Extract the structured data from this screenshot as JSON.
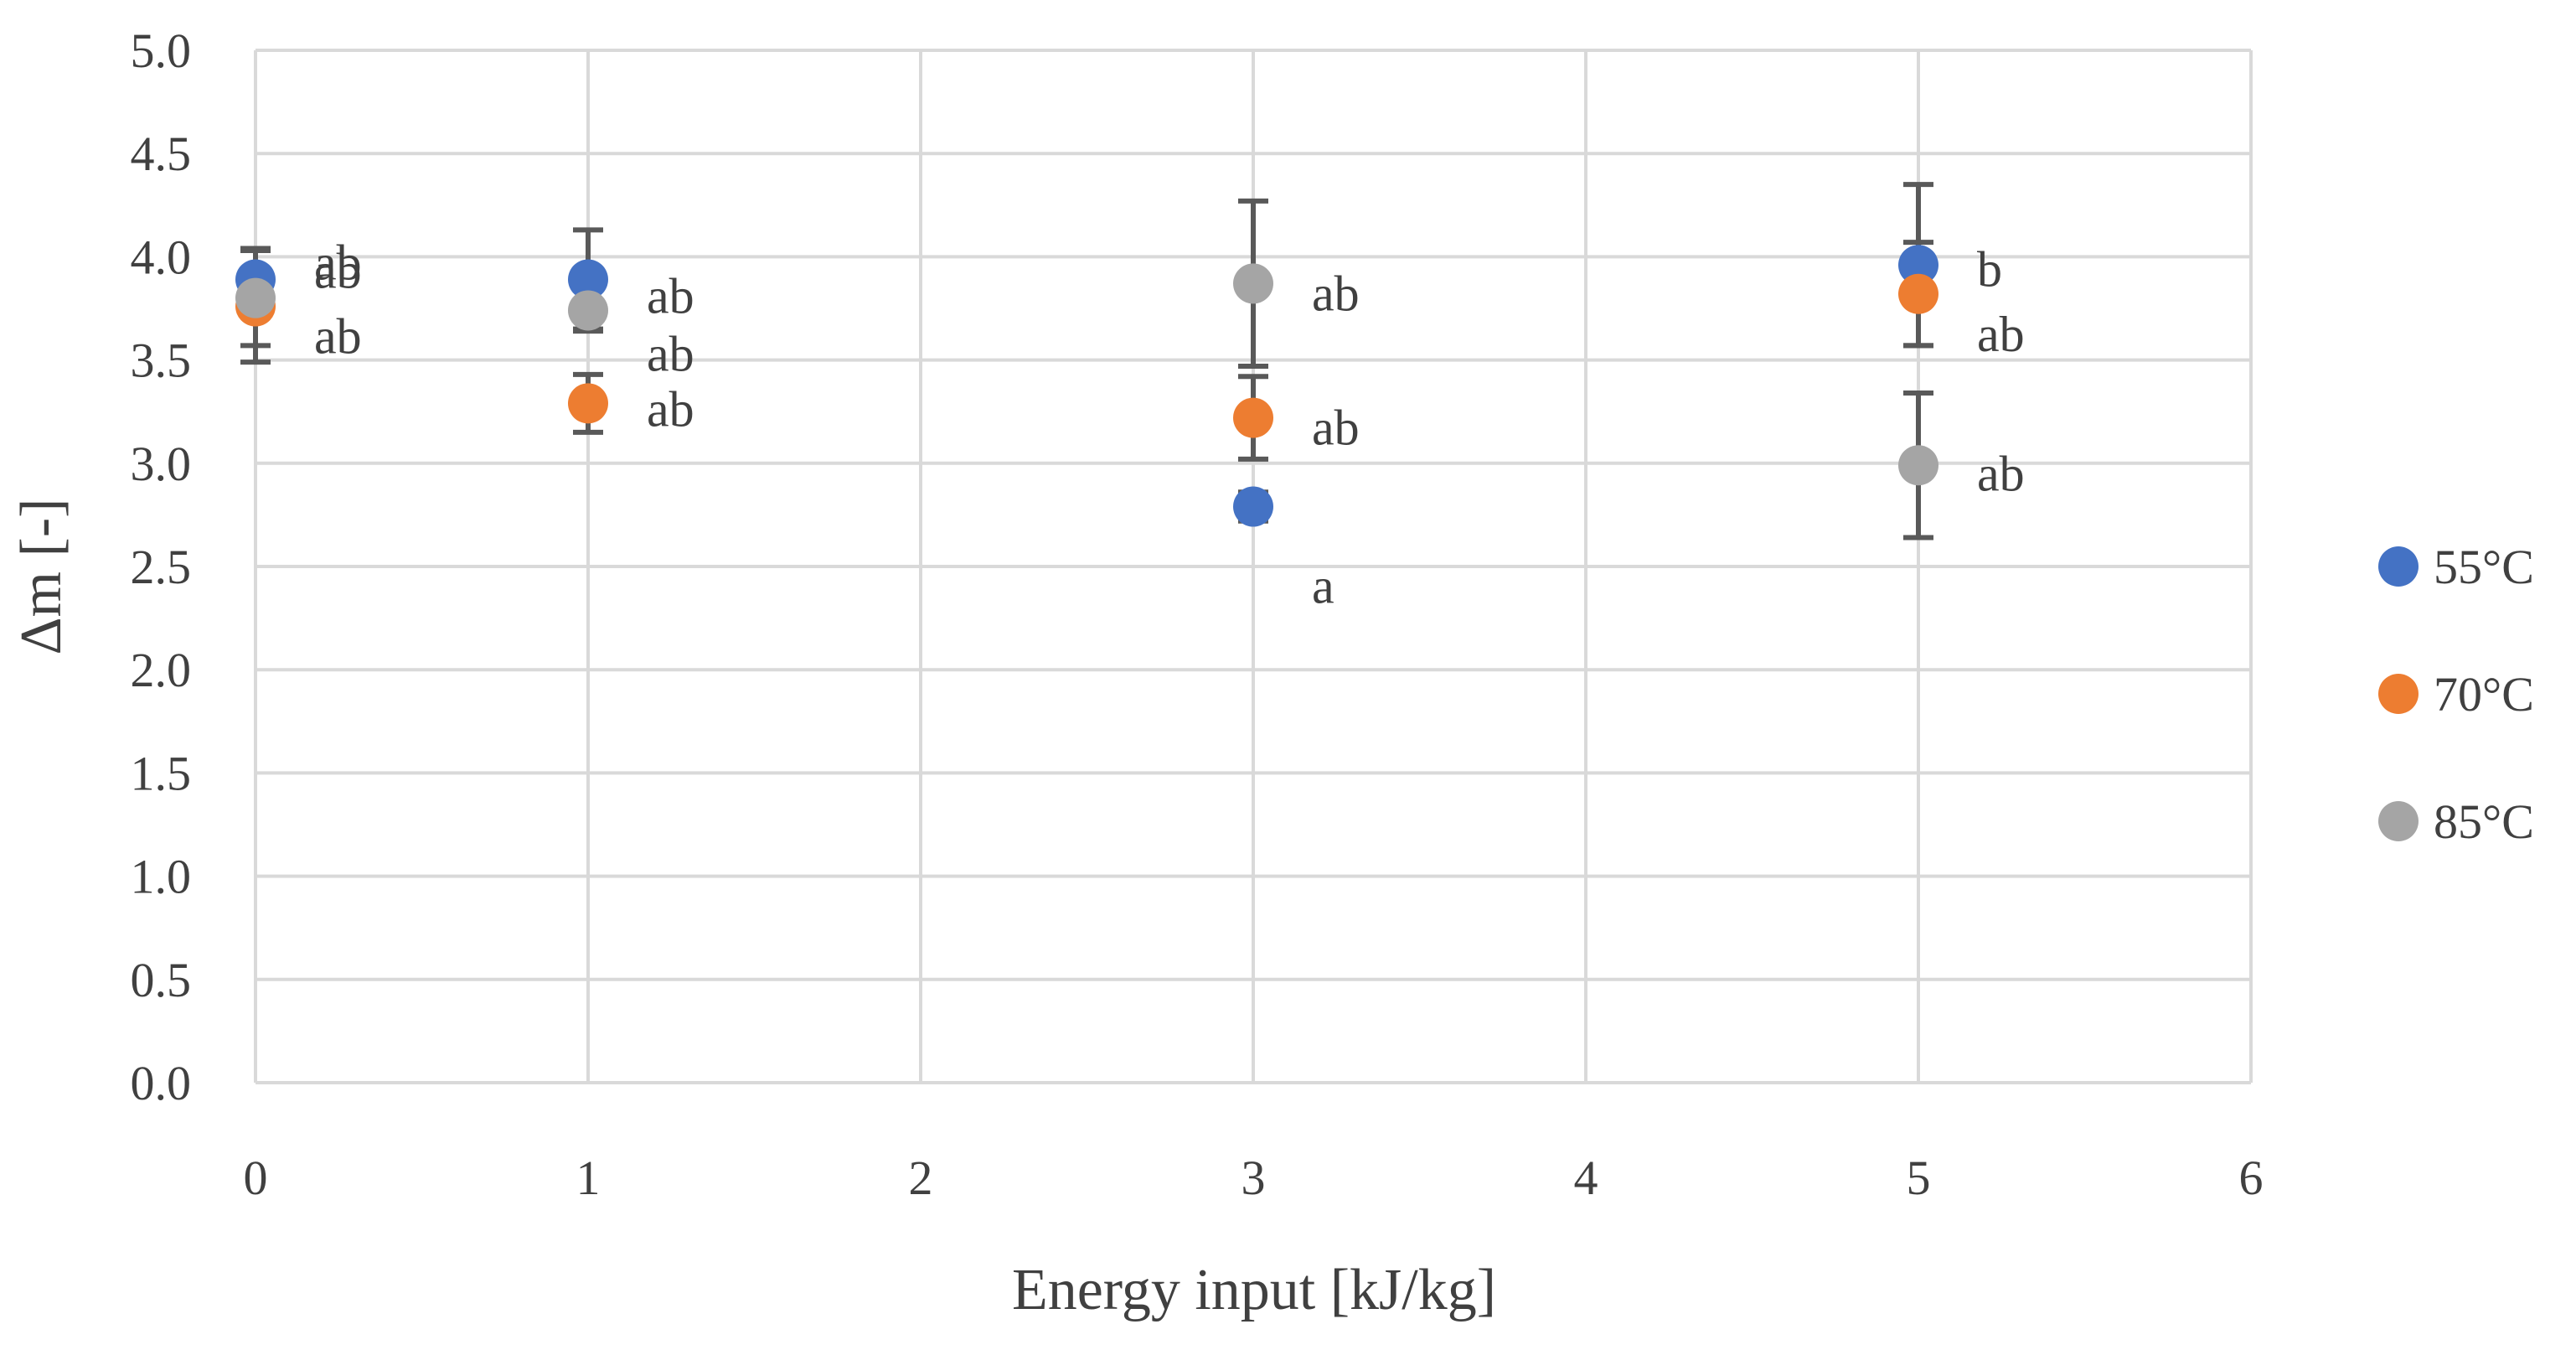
{
  "chart_data": {
    "type": "scatter",
    "title": "",
    "xlabel": "Energy input [kJ/kg]",
    "ylabel": "Δm [-]",
    "xlim": [
      0,
      6
    ],
    "ylim": [
      0,
      5
    ],
    "x_ticks": [
      "0",
      "1",
      "2",
      "3",
      "4",
      "5",
      "6"
    ],
    "y_ticks": [
      "0.0",
      "0.5",
      "1.0",
      "1.5",
      "2.0",
      "2.5",
      "3.0",
      "3.5",
      "4.0",
      "4.5",
      "5.0"
    ],
    "grid": true,
    "legend_position": "right",
    "series": [
      {
        "name": "55°C",
        "color": "#4472C4",
        "points": [
          {
            "x": 0,
            "y": 3.89,
            "err": 0.15,
            "label": "ab"
          },
          {
            "x": 1,
            "y": 3.89,
            "err": 0.24,
            "label": "ab"
          },
          {
            "x": 3,
            "y": 2.79,
            "err": 0.07,
            "label": "a"
          },
          {
            "x": 5,
            "y": 3.96,
            "err": 0.39,
            "label": "b"
          }
        ]
      },
      {
        "name": "70°C",
        "color": "#ED7D31",
        "points": [
          {
            "x": 0,
            "y": 3.76,
            "err": 0.27,
            "label": "ab"
          },
          {
            "x": 1,
            "y": 3.29,
            "err": 0.14,
            "label": "ab"
          },
          {
            "x": 3,
            "y": 3.22,
            "err": 0.2,
            "label": "ab"
          },
          {
            "x": 5,
            "y": 3.82,
            "err": 0.25,
            "label": "ab"
          }
        ]
      },
      {
        "name": "85°C",
        "color": "#A5A5A5",
        "points": [
          {
            "x": 0,
            "y": 3.8,
            "err": 0.23,
            "label": "ab"
          },
          {
            "x": 1,
            "y": 3.74,
            "err": 0.1,
            "label": "ab"
          },
          {
            "x": 3,
            "y": 3.87,
            "err": 0.4,
            "label": "ab"
          },
          {
            "x": 5,
            "y": 2.99,
            "err": 0.35,
            "label": "ab"
          }
        ]
      }
    ]
  }
}
